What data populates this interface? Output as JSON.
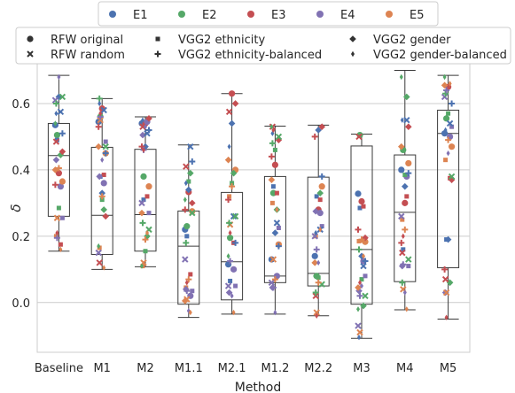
{
  "chart_data": {
    "type": "box",
    "xlabel": "Method",
    "ylabel": "δ",
    "ylim": [
      -0.15,
      0.72
    ],
    "yticks": [
      0.0,
      0.2,
      0.4,
      0.6
    ],
    "ytick_labels": [
      "0.0",
      "0.2",
      "0.4",
      "0.6"
    ],
    "grid": "horizontal",
    "categories": [
      "Baseline",
      "M1",
      "M2",
      "M1.1",
      "M2.1",
      "M1.2",
      "M2.2",
      "M3",
      "M4",
      "M5"
    ],
    "boxes": [
      {
        "q1": 0.26,
        "median": 0.443,
        "q3": 0.54,
        "whisker_low": 0.155,
        "whisker_high": 0.685
      },
      {
        "q1": 0.145,
        "median": 0.263,
        "q3": 0.468,
        "whisker_low": 0.1,
        "whisker_high": 0.615
      },
      {
        "q1": 0.155,
        "median": 0.265,
        "q3": 0.462,
        "whisker_low": 0.108,
        "whisker_high": 0.56
      },
      {
        "q1": -0.005,
        "median": 0.17,
        "q3": 0.276,
        "whisker_low": -0.045,
        "whisker_high": 0.475
      },
      {
        "q1": 0.008,
        "median": 0.123,
        "q3": 0.332,
        "whisker_low": -0.035,
        "whisker_high": 0.63
      },
      {
        "q1": 0.06,
        "median": 0.08,
        "q3": 0.38,
        "whisker_low": -0.035,
        "whisker_high": 0.532
      },
      {
        "q1": 0.05,
        "median": 0.088,
        "q3": 0.378,
        "whisker_low": -0.04,
        "whisker_high": 0.535
      },
      {
        "q1": -0.005,
        "median": 0.16,
        "q3": 0.472,
        "whisker_low": -0.108,
        "whisker_high": 0.508
      },
      {
        "q1": 0.063,
        "median": 0.272,
        "q3": 0.445,
        "whisker_low": -0.022,
        "whisker_high": 0.7
      },
      {
        "q1": 0.105,
        "median": 0.51,
        "q3": 0.58,
        "whisker_low": -0.05,
        "whisker_high": 0.685
      }
    ],
    "legend_hue": {
      "placement": "top-center",
      "entries": [
        {
          "label": "E1",
          "color": "#4c72b0"
        },
        {
          "label": "E2",
          "color": "#55a868"
        },
        {
          "label": "E3",
          "color": "#c44e52"
        },
        {
          "label": "E4",
          "color": "#8172b3"
        },
        {
          "label": "E5",
          "color": "#dd8452"
        }
      ]
    },
    "legend_style": {
      "placement": "top",
      "entries": [
        {
          "label": "RFW original",
          "marker": "circle"
        },
        {
          "label": "VGG2 ethnicity",
          "marker": "square"
        },
        {
          "label": "VGG2 gender",
          "marker": "diamond"
        },
        {
          "label": "RFW random",
          "marker": "x"
        },
        {
          "label": "VGG2 ethnicity-balanced",
          "marker": "plus"
        },
        {
          "label": "VGG2 gender-balanced",
          "marker": "thin-diamond"
        }
      ]
    },
    "points": [
      [
        [
          0.535,
          0.505,
          0.39,
          0.35,
          0.365
        ],
        [
          0.49,
          0.285,
          0.175,
          0.255,
          0.2
        ],
        [
          0.62,
          0.445,
          0.455,
          0.43,
          0.4
        ],
        [
          0.575,
          0.62,
          0.485,
          0.61,
          0.255
        ],
        [
          0.51,
          0.6,
          0.355,
          0.195,
          0.405
        ],
        [
          0.57,
          0.54,
          0.21,
          0.68,
          0.16
        ]
      ],
      [
        [
          0.545,
          0.56,
          0.585,
          0.36,
          0.45
        ],
        [
          0.38,
          0.31,
          0.385,
          0.485,
          0.165
        ],
        [
          0.33,
          0.28,
          0.26,
          0.38,
          0.47
        ],
        [
          0.58,
          0.47,
          0.12,
          0.15,
          0.55
        ],
        [
          0.45,
          0.615,
          0.53,
          0.56,
          0.32
        ],
        [
          0.6,
          0.17,
          0.57,
          0.43,
          0.105
        ]
      ],
      [
        [
          0.54,
          0.38,
          0.54,
          0.545,
          0.35
        ],
        [
          0.31,
          0.155,
          0.32,
          0.27,
          0.11
        ],
        [
          0.47,
          0.2,
          0.555,
          0.505,
          0.27
        ],
        [
          0.51,
          0.22,
          0.53,
          0.3,
          0.12
        ],
        [
          0.52,
          0.24,
          0.47,
          0.46,
          0.19
        ],
        [
          0.55,
          0.11,
          0.46,
          0.53,
          0.21
        ]
      ],
      [
        [
          0.22,
          0.23,
          0.333,
          0.02,
          0.275
        ],
        [
          0.2,
          0.365,
          0.085,
          0.035,
          0.045
        ],
        [
          0.34,
          0.39,
          0.3,
          0.04,
          0.005
        ],
        [
          0.47,
          0.27,
          0.41,
          0.13,
          0.01
        ],
        [
          0.425,
          0.18,
          0.28,
          0.035,
          0.07
        ],
        [
          0.36,
          0.31,
          0.06,
          -0.025,
          -0.03
        ]
      ],
      [
        [
          0.115,
          0.195,
          0.63,
          0.1,
          0.4
        ],
        [
          0.065,
          0.36,
          0.18,
          0.05,
          0.32
        ],
        [
          0.54,
          0.39,
          0.6,
          0.03,
          0.43
        ],
        [
          0.26,
          0.26,
          0.575,
          0.05,
          0.235
        ],
        [
          0.18,
          0.24,
          0.31,
          0.125,
          0.35
        ],
        [
          0.47,
          0.14,
          0.21,
          0.02,
          -0.03
        ]
      ],
      [
        [
          0.13,
          0.33,
          0.415,
          0.08,
          0.175
        ],
        [
          0.35,
          0.46,
          0.33,
          0.225,
          0.3
        ],
        [
          0.21,
          0.28,
          0.49,
          0.045,
          0.37
        ],
        [
          0.24,
          0.5,
          0.53,
          0.06,
          0.13
        ],
        [
          0.17,
          0.48,
          0.44,
          0.045,
          0.07
        ],
        [
          0.51,
          0.53,
          0.52,
          -0.03,
          0.28
        ]
      ],
      [
        [
          0.14,
          0.08,
          0.28,
          0.27,
          0.35
        ],
        [
          0.32,
          0.075,
          0.31,
          0.23,
          0.2
        ],
        [
          0.52,
          0.33,
          0.53,
          0.275,
          0.12
        ],
        [
          0.22,
          0.055,
          0.02,
          0.2,
          -0.03
        ],
        [
          0.38,
          0.03,
          0.5,
          0.16,
          0.06
        ],
        [
          0.21,
          0.08,
          -0.04,
          0.12,
          0.22
        ]
      ],
      [
        [
          0.328,
          0.505,
          0.305,
          0.125,
          0.183
        ],
        [
          0.285,
          0.07,
          0.29,
          0.08,
          0.185
        ],
        [
          0.14,
          -0.01,
          0.195,
          0.035,
          0.045
        ],
        [
          0.11,
          0.02,
          0.5,
          -0.07,
          -0.09
        ],
        [
          0.125,
          0.16,
          0.22,
          0.02,
          0.19
        ],
        [
          -0.105,
          -0.02,
          0.06,
          0.05,
          0.14
        ]
      ],
      [
        [
          0.4,
          0.46,
          0.3,
          0.38,
          0.42
        ],
        [
          0.16,
          0.385,
          0.32,
          0.11,
          0.25
        ],
        [
          0.35,
          0.62,
          0.53,
          0.11,
          0.47
        ],
        [
          0.55,
          0.13,
          0.15,
          0.26,
          0.04
        ],
        [
          0.39,
          0.06,
          0.18,
          0.115,
          0.22
        ],
        [
          0.55,
          0.68,
          0.2,
          0.03,
          -0.02
        ]
      ],
      [
        [
          0.51,
          0.555,
          0.65,
          0.5,
          0.47
        ],
        [
          0.19,
          0.57,
          0.375,
          0.53,
          0.43
        ],
        [
          0.19,
          0.06,
          0.37,
          0.03,
          0.655
        ],
        [
          0.54,
          0.38,
          0.07,
          0.62,
          0.03
        ],
        [
          0.6,
          0.63,
          0.1,
          0.64,
          0.49
        ],
        [
          0.52,
          0.68,
          -0.045,
          0.45,
          0.66
        ]
      ]
    ]
  }
}
